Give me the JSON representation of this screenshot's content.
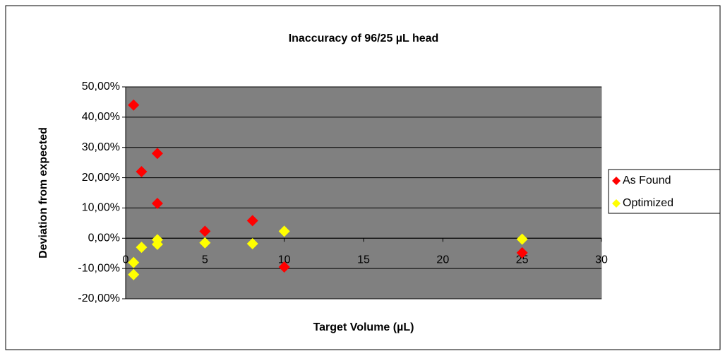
{
  "chart_data": {
    "type": "scatter",
    "title": "Inaccuracy of 96/25 µL head",
    "xlabel": "Target Volume (µL)",
    "ylabel": "Deviation from expected",
    "xlim": [
      0,
      30
    ],
    "xticks": [
      0,
      5,
      10,
      15,
      20,
      25,
      30
    ],
    "ylim": [
      -20,
      50
    ],
    "yticks": [
      {
        "value": -20,
        "label": "-20,00%"
      },
      {
        "value": -10,
        "label": "-10,00%"
      },
      {
        "value": 0,
        "label": "0,00%"
      },
      {
        "value": 10,
        "label": "10,00%"
      },
      {
        "value": 20,
        "label": "20,00%"
      },
      {
        "value": 30,
        "label": "30,00%"
      },
      {
        "value": 40,
        "label": "40,00%"
      },
      {
        "value": 50,
        "label": "50,00%"
      }
    ],
    "grid": true,
    "legend": "right",
    "series": [
      {
        "name": "As Found",
        "color": "#ff0000",
        "x": [
          0.5,
          1,
          2,
          2,
          5,
          8,
          10,
          25
        ],
        "values": [
          44,
          22,
          28,
          11.5,
          2.3,
          5.8,
          -9.5,
          -4.8
        ]
      },
      {
        "name": "Optimized",
        "color": "#ffff00",
        "x": [
          0.5,
          0.5,
          1,
          2,
          2,
          5,
          8,
          10,
          25
        ],
        "values": [
          -8,
          -12,
          -3,
          -2,
          -0.5,
          -1.5,
          -1.8,
          2.3,
          -0.3
        ]
      }
    ]
  }
}
